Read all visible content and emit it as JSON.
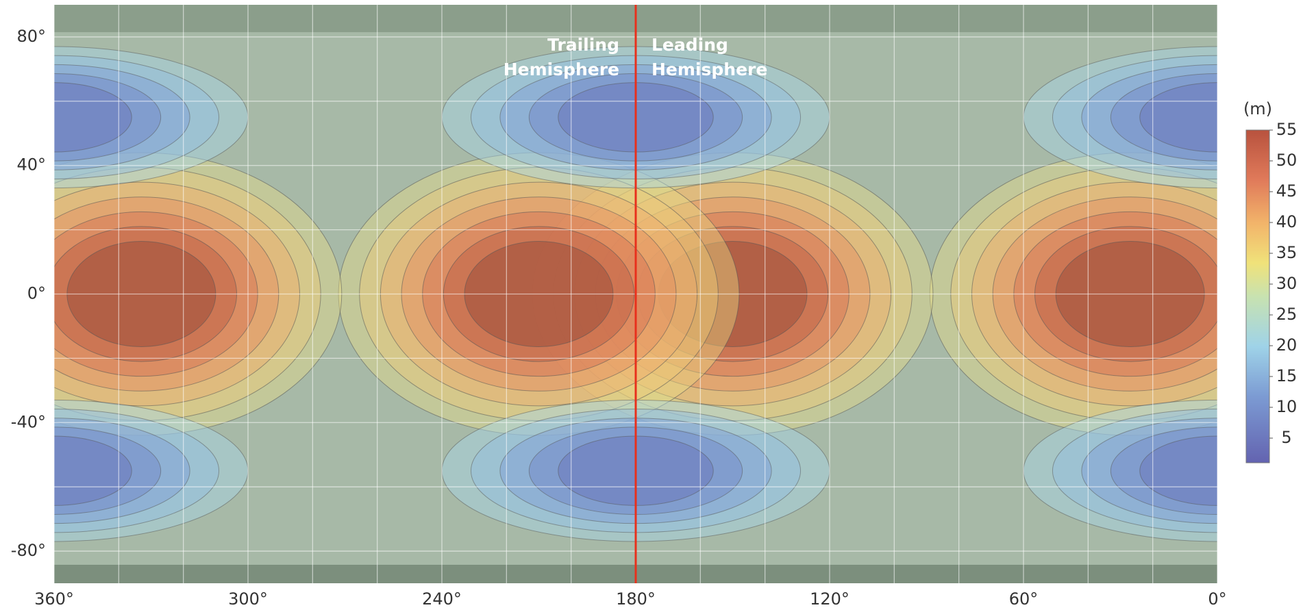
{
  "map": {
    "xlim": [
      360,
      0
    ],
    "ylim": [
      -90,
      90
    ],
    "xticks": [
      {
        "value": 360,
        "label": "360°"
      },
      {
        "value": 300,
        "label": "300°"
      },
      {
        "value": 240,
        "label": "240°"
      },
      {
        "value": 180,
        "label": "180°"
      },
      {
        "value": 120,
        "label": "120°"
      },
      {
        "value": 60,
        "label": "60°"
      },
      {
        "value": 0,
        "label": "0°"
      }
    ],
    "yticks": [
      {
        "value": 80,
        "label": "80°"
      },
      {
        "value": 40,
        "label": "40°"
      },
      {
        "value": 0,
        "label": "0°"
      },
      {
        "value": -40,
        "label": "-40°"
      },
      {
        "value": -80,
        "label": "-80°"
      }
    ],
    "annotations": [
      {
        "lines": [
          "Trailing",
          "Hemisphere"
        ]
      },
      {
        "lines": [
          "Leading",
          "Hemisphere"
        ]
      }
    ],
    "colorbar": {
      "label": "(m)",
      "lim": [
        1,
        55
      ],
      "ticks": [
        5,
        10,
        15,
        20,
        25,
        30,
        35,
        40,
        45,
        50,
        55
      ]
    }
  }
}
